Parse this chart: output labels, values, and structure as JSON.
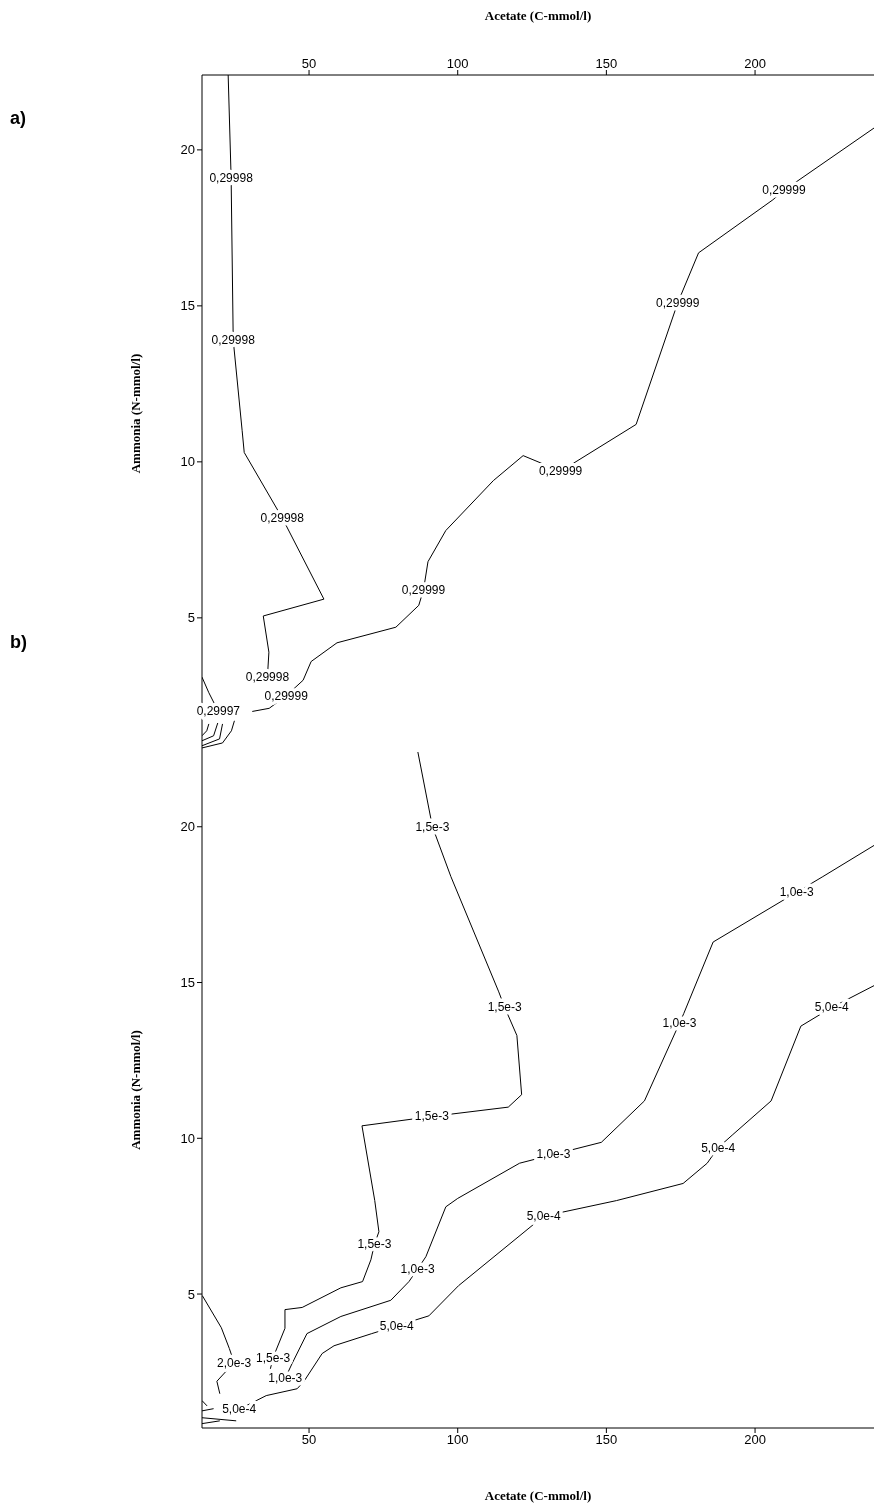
{
  "chart_data": [
    {
      "type": "line",
      "xlabel": "Acetate (C-mmol/l)",
      "ylabel": "Ammonia (N-mmol/l)",
      "xlim": [
        14,
        240
      ],
      "xticks": [
        50,
        100,
        150,
        200
      ],
      "ylim": [
        0.7,
        22.4
      ],
      "yticks": [
        5,
        10,
        15,
        20
      ],
      "grid": false,
      "marker": "none",
      "line_style": "solid",
      "series": [
        {
          "color": "#000000",
          "x": [
            22.8,
            23.8,
            24.5,
            27.5,
            28.2,
            41,
            55.0,
            34.6,
            36.5,
            36
          ],
          "values": [
            22.4,
            19.1,
            13.9,
            11.0,
            10.3,
            8.2,
            5.6,
            5.06,
            3.9,
            3.1
          ]
        },
        {
          "color": "#000000",
          "x": [
            30.9,
            36.6,
            42.3,
            48,
            50.7,
            59.4,
            79.2,
            86.9,
            88.5,
            90,
            96,
            112,
            122,
            134.6,
            160,
            174,
            181,
            206,
            209.7,
            240
          ],
          "values": [
            2.0,
            2.1,
            2.5,
            3.0,
            3.6,
            4.2,
            4.7,
            5.4,
            5.9,
            6.8,
            7.8,
            9.4,
            10.2,
            9.7,
            11.2,
            15.1,
            16.7,
            18.4,
            18.7,
            20.7
          ]
        },
        {
          "color": "#000000",
          "x": [
            14,
            16.3,
            19.5
          ],
          "values": [
            3.1,
            2.6,
            2.0
          ]
        },
        {
          "color": "#000000",
          "x": [
            14,
            20.9,
            23.9,
            24.9
          ],
          "values": [
            0.83,
            0.99,
            1.38,
            1.7
          ]
        },
        {
          "color": "#000000",
          "x": [
            14,
            19.9,
            20.9
          ],
          "values": [
            0.9,
            1.12,
            1.6
          ]
        },
        {
          "color": "#000000",
          "x": [
            14,
            17.9,
            19.3
          ],
          "values": [
            1.06,
            1.22,
            1.63
          ]
        },
        {
          "color": "#000000",
          "x": [
            14,
            15.6,
            16.3
          ],
          "values": [
            1.22,
            1.38,
            1.6
          ]
        }
      ],
      "annotations": [
        "a)",
        {
          "text": "0,29998",
          "x": 23.8,
          "y": 19.1
        },
        {
          "text": "0,29998",
          "x": 24.5,
          "y": 13.9
        },
        {
          "text": "0,29998",
          "x": 41,
          "y": 8.2
        },
        {
          "text": "0,29998",
          "x": 36,
          "y": 3.1
        },
        {
          "text": "0,29999",
          "x": 209.7,
          "y": 18.7
        },
        {
          "text": "0,29999",
          "x": 174,
          "y": 15.1
        },
        {
          "text": "0,29999",
          "x": 134.6,
          "y": 9.7
        },
        {
          "text": "0,29999",
          "x": 88.5,
          "y": 5.9
        },
        {
          "text": "0,29999",
          "x": 42.3,
          "y": 2.5
        },
        {
          "text": "0,29997",
          "x": 19.5,
          "y": 2.0
        }
      ]
    },
    {
      "type": "line",
      "xlabel": "Acetate (C-mmol/l)",
      "ylabel": "Ammonia (N-mmol/l)",
      "xlim": [
        14,
        240
      ],
      "xticks": [
        50,
        100,
        150,
        200
      ],
      "ylim": [
        0.7,
        22.4
      ],
      "yticks": [
        5,
        10,
        15,
        20
      ],
      "grid": false,
      "marker": "none",
      "line_style": "solid",
      "series": [
        {
          "color": "#000000",
          "x": [
            86.6,
            91.5,
            97.7,
            113.8,
            115.8,
            119.9,
            121.5,
            117,
            91.3,
            67.8,
            72.1,
            73.5,
            72,
            70.8,
            68,
            60.7,
            47.7,
            41.9,
            41.9,
            37.9,
            37
          ],
          "values": [
            22.4,
            20.0,
            18.4,
            14.7,
            14.2,
            13.3,
            11.4,
            11.0,
            10.7,
            10.4,
            8.0,
            7.0,
            6.6,
            6.1,
            5.4,
            5.2,
            4.57,
            4.5,
            3.9,
            2.96,
            2.6
          ]
        },
        {
          "color": "#000000",
          "x": [
            240,
            222.8,
            214,
            185.9,
            176,
            174.6,
            162.8,
            148.3,
            132.2,
            120.8,
            100,
            96,
            89.3,
            86.5,
            83.6,
            77.5,
            60.7,
            49.3,
            44.3,
            42
          ],
          "values": [
            19.4,
            18.4,
            17.9,
            16.3,
            14.0,
            13.7,
            11.2,
            9.87,
            9.48,
            9.2,
            8.07,
            7.8,
            6.2,
            5.8,
            5.4,
            4.8,
            4.28,
            3.73,
            2.77,
            2.3
          ]
        },
        {
          "color": "#000000",
          "x": [
            240,
            225.8,
            215.4,
            205.4,
            192.3,
            187.6,
            183.9,
            175.8,
            153.4,
            128.9,
            100.3,
            90.3,
            79.5,
            71.1,
            58.4,
            54.4,
            48.3,
            46,
            35.6,
            26.5
          ],
          "values": [
            14.9,
            14.2,
            13.6,
            11.2,
            10.1,
            9.7,
            9.2,
            8.55,
            8.0,
            7.5,
            5.27,
            4.3,
            3.98,
            3.73,
            3.34,
            3.09,
            2.2,
            1.96,
            1.74,
            1.3
          ]
        },
        {
          "color": "#000000",
          "x": [
            14.1,
            20.5,
            23.2,
            24.8,
            19,
            20
          ],
          "values": [
            4.95,
            3.92,
            3.25,
            2.8,
            2.2,
            1.8
          ]
        },
        {
          "color": "#000000",
          "x": [
            14,
            15.7
          ],
          "values": [
            1.58,
            1.41
          ]
        },
        {
          "color": "#000000",
          "x": [
            14,
            17.9
          ],
          "values": [
            1.25,
            1.32
          ]
        },
        {
          "color": "#000000",
          "x": [
            14,
            25.5
          ],
          "values": [
            1.03,
            0.93
          ]
        },
        {
          "color": "#000000",
          "x": [
            14,
            20
          ],
          "values": [
            0.84,
            0.93
          ]
        }
      ],
      "annotations": [
        "b)",
        {
          "text": "1,5e-3",
          "x": 91.5,
          "y": 20.0
        },
        {
          "text": "1,5e-3",
          "x": 115.8,
          "y": 14.2
        },
        {
          "text": "1,5e-3",
          "x": 91.3,
          "y": 10.7
        },
        {
          "text": "1,5e-3",
          "x": 72,
          "y": 6.6
        },
        {
          "text": "1,5e-3",
          "x": 37.9,
          "y": 2.96
        },
        {
          "text": "1,0e-3",
          "x": 214,
          "y": 17.9
        },
        {
          "text": "1,0e-3",
          "x": 174.6,
          "y": 13.7
        },
        {
          "text": "1,0e-3",
          "x": 132.2,
          "y": 9.48
        },
        {
          "text": "1,0e-3",
          "x": 86.5,
          "y": 5.8
        },
        {
          "text": "1,0e-3",
          "x": 42,
          "y": 2.3
        },
        {
          "text": "5,0e-4",
          "x": 225.8,
          "y": 14.2
        },
        {
          "text": "5,0e-4",
          "x": 187.6,
          "y": 9.7
        },
        {
          "text": "5,0e-4",
          "x": 128.9,
          "y": 7.5
        },
        {
          "text": "5,0e-4",
          "x": 79.5,
          "y": 3.98
        },
        {
          "text": "5,0e-4",
          "x": 26.5,
          "y": 1.3
        },
        {
          "text": "2,0e-3",
          "x": 24.8,
          "y": 2.8
        }
      ]
    }
  ]
}
